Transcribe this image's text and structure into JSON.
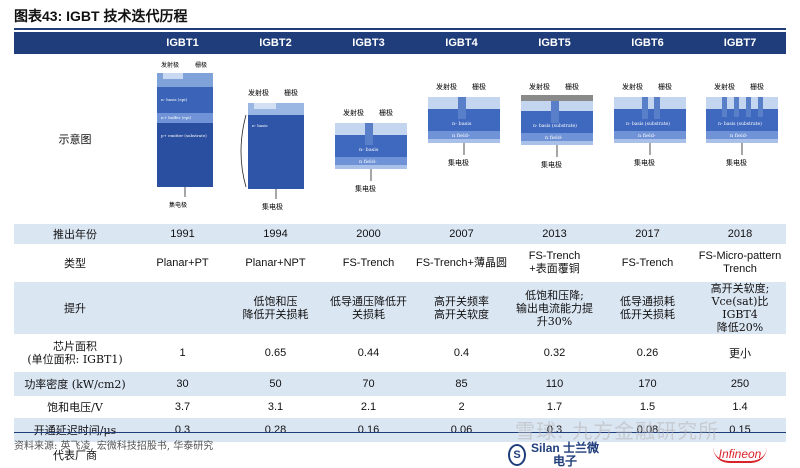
{
  "title": "图表43:  IGBT 技术迭代历程",
  "columns": [
    "",
    "IGBT1",
    "IGBT2",
    "IGBT3",
    "IGBT4",
    "IGBT5",
    "IGBT6",
    "IGBT7"
  ],
  "diagram_row_label": "示意图",
  "diagram_labels": {
    "emitter": "发射极",
    "gate": "栅极",
    "collector": "集电极",
    "n_basis": "n- basis",
    "n_field": "n field-",
    "substrate": "n- basis (substrate)",
    "n_basis_epi": "n- basis (epi)",
    "n_buffer_epi": "n+ buffer (epi)",
    "p_emitter": "p+ emitter (substrate)",
    "n_basis_sub2": "n- basis (substrate)"
  },
  "rows": [
    {
      "label": "推出年份",
      "values": [
        "1991",
        "1994",
        "2000",
        "2007",
        "2013",
        "2017",
        "2018"
      ]
    },
    {
      "label": "类型",
      "values": [
        "Planar+PT",
        "Planar+NPT",
        "FS-Trench",
        "FS-Trench+薄晶圆",
        "FS-Trench\n+表面覆铜",
        "FS-Trench",
        "FS-Micro-pattern\nTrench"
      ]
    },
    {
      "label": "提升",
      "values": [
        "",
        "低饱和压\n降低开关损耗",
        "低导通压降低开\n关损耗",
        "高开关频率\n高开关软度",
        "低饱和压降;\n输出电流能力提\n升30%",
        "低导通损耗\n低开关损耗",
        "高开关软度;\nVce(sat)比IGBT4\n降低20%"
      ]
    },
    {
      "label": "芯片面积\n(单位面积: IGBT1)",
      "values": [
        "1",
        "0.65",
        "0.44",
        "0.4",
        "0.32",
        "0.26",
        "更小"
      ]
    },
    {
      "label": "功率密度 (kW/cm2)",
      "values": [
        "30",
        "50",
        "70",
        "85",
        "110",
        "170",
        "250"
      ]
    },
    {
      "label": "饱和电压/V",
      "values": [
        "3.7",
        "3.1",
        "2.1",
        "2",
        "1.7",
        "1.5",
        "1.4"
      ]
    },
    {
      "label": "开通延迟时间/μs",
      "values": [
        "0.3",
        "0.28",
        "0.16",
        "0.06",
        "0.3",
        "0.08",
        "0.15"
      ]
    }
  ],
  "rep_label": "代表厂商",
  "rep_logos": {
    "silan": "Silan 士兰微电子",
    "infineon": "Infineon"
  },
  "source": "资料来源: 英飞凌, 宏微科技招股书, 华泰研究",
  "watermark": "雪球: 九方金融研究所"
}
